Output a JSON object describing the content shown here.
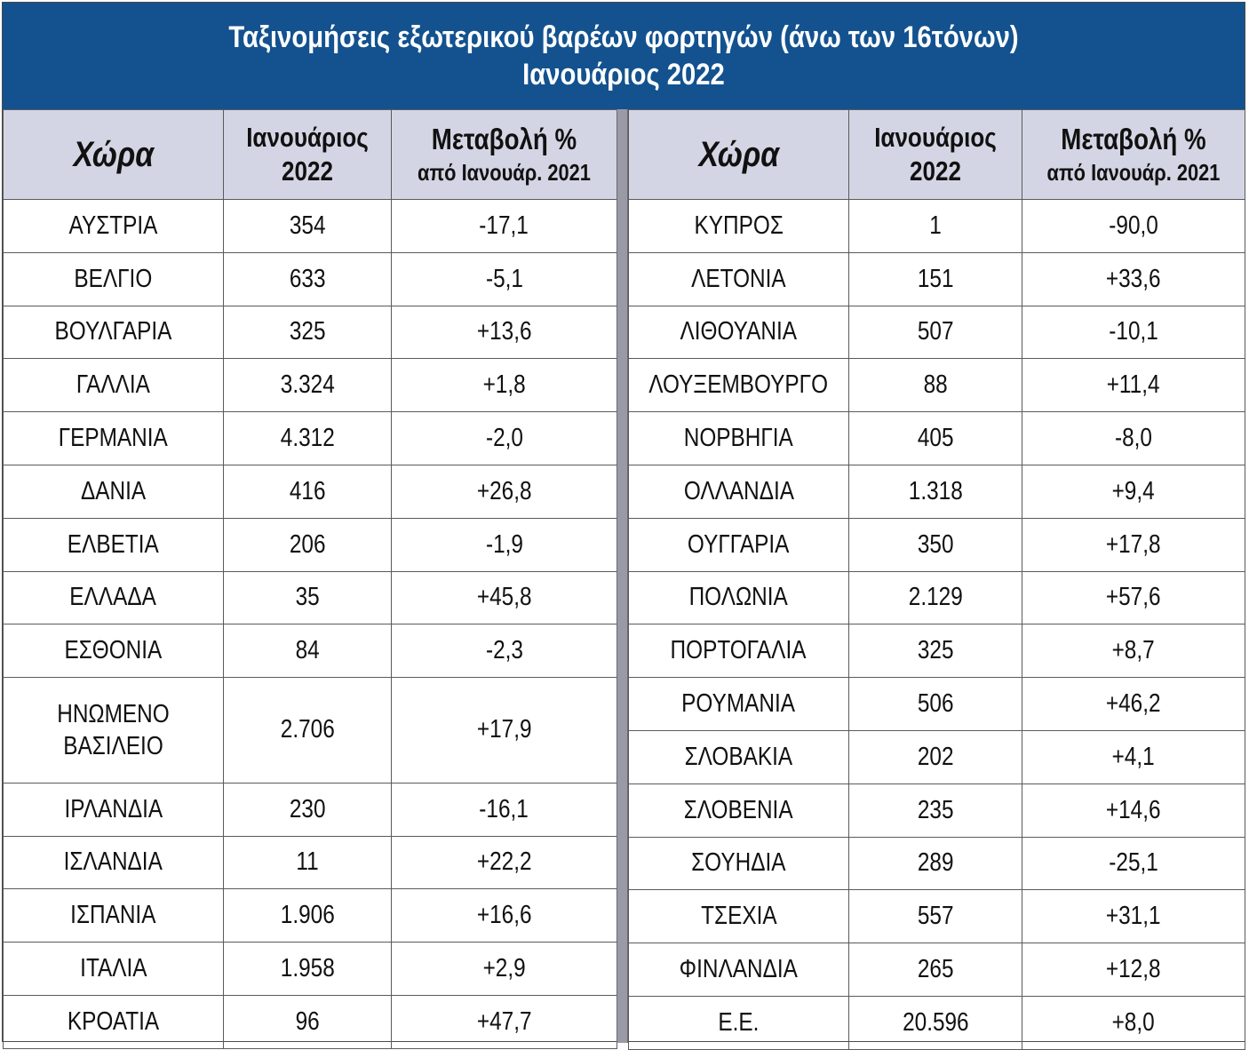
{
  "title": {
    "line1": "Ταξινομήσεις εξωτερικού βαρέων φορτηγών (άνω των 16τόνων)",
    "line2": "Ιανουάριος 2022"
  },
  "headers": {
    "country": "Χώρα",
    "month_line1": "Ιανουάριος",
    "month_line2": "2022",
    "change_line1": "Μεταβολή %",
    "change_line2": "από Ιανουάρ. 2021"
  },
  "left_rows": [
    {
      "country": "ΑΥΣΤΡΙΑ",
      "value": "354",
      "change": "-17,1"
    },
    {
      "country": "ΒΕΛΓΙΟ",
      "value": "633",
      "change": "-5,1"
    },
    {
      "country": "ΒΟΥΛΓΑΡΙΑ",
      "value": "325",
      "change": "+13,6"
    },
    {
      "country": "ΓΑΛΛΙΑ",
      "value": "3.324",
      "change": "+1,8"
    },
    {
      "country": "ΓΕΡΜΑΝΙΑ",
      "value": "4.312",
      "change": "-2,0"
    },
    {
      "country": "ΔΑΝΙΑ",
      "value": "416",
      "change": "+26,8"
    },
    {
      "country": "ΕΛΒΕΤΙΑ",
      "value": "206",
      "change": "-1,9"
    },
    {
      "country": "ΕΛΛΑΔΑ",
      "value": "35",
      "change": "+45,8"
    },
    {
      "country": "ΕΣΘΟΝΙΑ",
      "value": "84",
      "change": "-2,3"
    },
    {
      "country": "ΗΝΩΜΕΝΟ",
      "country_line2": "ΒΑΣΙΛΕΙΟ",
      "value": "2.706",
      "change": "+17,9"
    },
    {
      "country": "ΙΡΛΑΝΔΙΑ",
      "value": "230",
      "change": "-16,1"
    },
    {
      "country": "ΙΣΛΑΝΔΙΑ",
      "value": "11",
      "change": "+22,2"
    },
    {
      "country": "ΙΣΠΑΝΙΑ",
      "value": "1.906",
      "change": "+16,6"
    },
    {
      "country": "ΙΤΑΛΙΑ",
      "value": "1.958",
      "change": "+2,9"
    },
    {
      "country": "ΚΡΟΑΤΙΑ",
      "value": "96",
      "change": "+47,7"
    }
  ],
  "right_rows": [
    {
      "country": "ΚΥΠΡΟΣ",
      "value": "1",
      "change": "-90,0"
    },
    {
      "country": "ΛΕΤΟΝΙΑ",
      "value": "151",
      "change": "+33,6"
    },
    {
      "country": "ΛΙΘΟΥΑΝΙΑ",
      "value": "507",
      "change": "-10,1"
    },
    {
      "country": "ΛΟΥΞΕΜΒΟΥΡΓΟ",
      "value": "88",
      "change": "+11,4"
    },
    {
      "country": "ΝΟΡΒΗΓΙΑ",
      "value": "405",
      "change": "-8,0"
    },
    {
      "country": "ΟΛΛΑΝΔΙΑ",
      "value": "1.318",
      "change": "+9,4"
    },
    {
      "country": "ΟΥΓΓΑΡΙΑ",
      "value": "350",
      "change": "+17,8"
    },
    {
      "country": "ΠΟΛΩΝΙΑ",
      "value": "2.129",
      "change": "+57,6"
    },
    {
      "country": "ΠΟΡΤΟΓΑΛΙΑ",
      "value": "325",
      "change": "+8,7"
    },
    {
      "country": "ΡΟΥΜΑΝΙΑ",
      "value": "506",
      "change": "+46,2"
    },
    {
      "country": "ΣΛΟΒΑΚΙΑ",
      "value": "202",
      "change": "+4,1"
    },
    {
      "country": "ΣΛΟΒΕΝΙΑ",
      "value": "235",
      "change": "+14,6"
    },
    {
      "country": "ΣΟΥΗΔΙΑ",
      "value": "289",
      "change": "-25,1"
    },
    {
      "country": "ΤΣΕΧΙΑ",
      "value": "557",
      "change": "+31,1"
    },
    {
      "country": "ΦΙΝΛΑΝΔΙΑ",
      "value": "265",
      "change": "+12,8"
    },
    {
      "country": "Ε.Ε.",
      "value": "20.596",
      "change": "+8,0"
    }
  ],
  "colors": {
    "title_background": "#13528f",
    "header_background": "#d4d5e4",
    "divider": "#9a9aa6"
  }
}
